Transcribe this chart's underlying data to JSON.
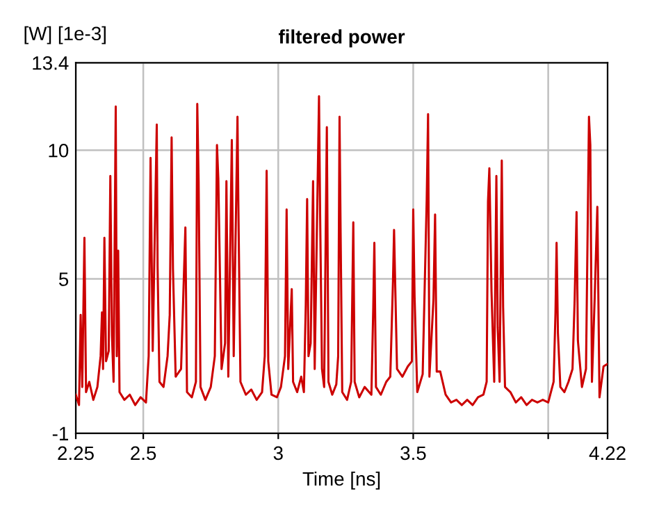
{
  "chart_data": {
    "type": "line",
    "title": "filtered power",
    "xlabel": "Time [ns]",
    "ylabel": "[W] [1e-3]",
    "xlim": [
      2.25,
      4.22
    ],
    "xticks": [
      2.25,
      2.5,
      3,
      3.5,
      {
        "value": 4,
        "label": null
      },
      4.22
    ],
    "ylim": [
      -1,
      13.4
    ],
    "yticks": [
      -1,
      5,
      10,
      13.4
    ],
    "grid": true,
    "marker": "none",
    "line_style": "solid",
    "series": [
      {
        "color": "#cc0000",
        "x": [
          2.25,
          2.262,
          2.268,
          2.274,
          2.282,
          2.288,
          2.3,
          2.315,
          2.33,
          2.342,
          2.347,
          2.351,
          2.356,
          2.362,
          2.372,
          2.378,
          2.384,
          2.39,
          2.398,
          2.402,
          2.407,
          2.412,
          2.43,
          2.45,
          2.47,
          2.49,
          2.51,
          2.52,
          2.527,
          2.535,
          2.55,
          2.553,
          2.56,
          2.575,
          2.59,
          2.598,
          2.605,
          2.61,
          2.62,
          2.64,
          2.656,
          2.662,
          2.68,
          2.695,
          2.7,
          2.705,
          2.712,
          2.73,
          2.75,
          2.765,
          2.773,
          2.778,
          2.79,
          2.803,
          2.808,
          2.815,
          2.828,
          2.835,
          2.849,
          2.852,
          2.86,
          2.88,
          2.9,
          2.92,
          2.94,
          2.95,
          2.957,
          2.963,
          2.975,
          2.995,
          3.01,
          3.025,
          3.031,
          3.037,
          3.05,
          3.055,
          3.07,
          3.085,
          3.095,
          3.102,
          3.107,
          3.112,
          3.12,
          3.129,
          3.135,
          3.151,
          3.155,
          3.162,
          3.17,
          3.18,
          3.186,
          3.2,
          3.215,
          3.222,
          3.227,
          3.231,
          3.237,
          3.255,
          3.27,
          3.278,
          3.283,
          3.3,
          3.32,
          3.345,
          3.352,
          3.356,
          3.362,
          3.38,
          3.4,
          3.415,
          3.425,
          3.429,
          3.433,
          3.44,
          3.46,
          3.48,
          3.495,
          3.5,
          3.505,
          3.515,
          3.535,
          3.55,
          3.555,
          3.56,
          3.575,
          3.581,
          3.587,
          3.6,
          3.62,
          3.64,
          3.66,
          3.68,
          3.7,
          3.72,
          3.74,
          3.76,
          3.772,
          3.777,
          3.782,
          3.79,
          3.8,
          3.808,
          3.813,
          3.82,
          3.828,
          3.833,
          3.84,
          3.86,
          3.88,
          3.9,
          3.92,
          3.94,
          3.96,
          3.98,
          4.0,
          4.02,
          4.027,
          4.031,
          4.036,
          4.045,
          4.06,
          4.075,
          4.09,
          4.098,
          4.105,
          4.11,
          4.125,
          4.14,
          4.151,
          4.156,
          4.162,
          4.172,
          4.182,
          4.19,
          4.205,
          4.22
        ],
        "values": [
          0.5,
          0.1,
          3.6,
          0.8,
          6.6,
          0.6,
          1.0,
          0.3,
          0.8,
          2.0,
          3.7,
          1.5,
          6.6,
          1.8,
          2.2,
          9.0,
          2.8,
          1.0,
          11.7,
          2.0,
          6.1,
          0.6,
          0.3,
          0.5,
          0.1,
          0.4,
          0.2,
          2.0,
          9.7,
          2.2,
          11.0,
          5.5,
          1.0,
          0.8,
          2.0,
          3.6,
          10.5,
          5.4,
          1.2,
          1.5,
          7.0,
          0.6,
          0.4,
          1.0,
          11.8,
          8.8,
          0.8,
          0.3,
          0.8,
          2.0,
          10.2,
          8.9,
          1.5,
          2.5,
          8.8,
          1.2,
          10.4,
          2.0,
          11.3,
          8.1,
          1.0,
          0.5,
          0.7,
          0.3,
          0.6,
          2.0,
          9.2,
          1.8,
          0.5,
          0.4,
          0.8,
          2.0,
          7.7,
          1.5,
          4.6,
          1.0,
          0.6,
          1.2,
          0.6,
          4.0,
          8.1,
          2.0,
          2.5,
          8.8,
          1.5,
          12.1,
          7.6,
          1.5,
          0.8,
          10.9,
          1.0,
          0.5,
          0.9,
          2.0,
          11.3,
          6.8,
          0.6,
          0.3,
          1.0,
          7.2,
          1.0,
          0.4,
          0.8,
          0.5,
          3.9,
          6.4,
          0.8,
          0.5,
          1.0,
          1.2,
          4.9,
          6.9,
          4.9,
          1.5,
          1.2,
          1.6,
          1.8,
          7.7,
          4.3,
          0.6,
          1.3,
          8.1,
          11.4,
          1.2,
          4.2,
          7.5,
          1.4,
          1.4,
          0.5,
          0.2,
          0.3,
          0.1,
          0.3,
          0.1,
          0.4,
          0.5,
          1.0,
          8.0,
          9.3,
          4.5,
          1.0,
          9.0,
          3.1,
          1.0,
          9.6,
          3.9,
          0.8,
          0.6,
          0.2,
          0.4,
          0.1,
          0.3,
          0.2,
          0.3,
          0.2,
          1.0,
          3.7,
          6.4,
          2.9,
          0.8,
          0.6,
          1.0,
          1.5,
          4.2,
          7.6,
          2.6,
          0.8,
          1.5,
          11.3,
          10.2,
          1.0,
          4.2,
          7.8,
          0.4,
          1.6,
          1.7
        ]
      }
    ]
  }
}
